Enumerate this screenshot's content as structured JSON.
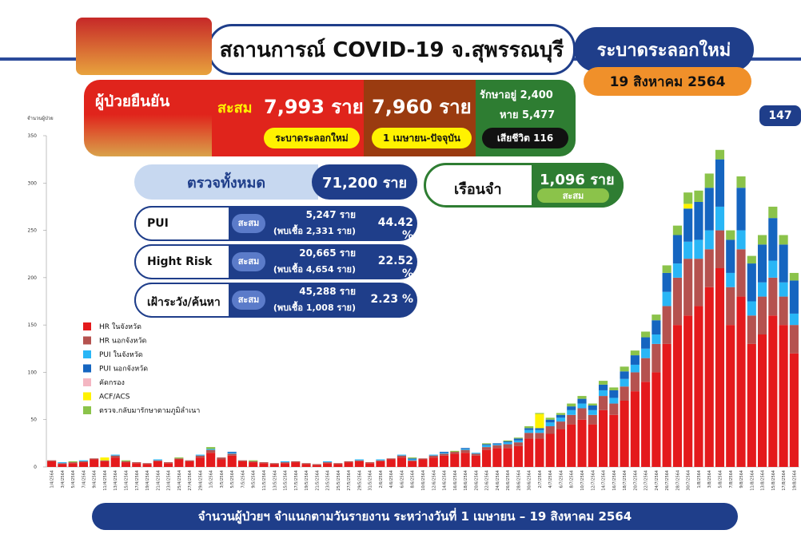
{
  "header": {
    "title": "สถานการณ์ COVID-19 จ.สุพรรณบุรี",
    "badge": "ระบาดระลอกใหม่",
    "date": "19 สิงหาคม 2564",
    "side_badge": "147"
  },
  "confirmed": {
    "title": "ผู้ป่วยยืนยัน",
    "cumulative_label": "สะสม",
    "total": "7,993 ราย",
    "total_note": "ระบาดระลอกใหม่",
    "since": "7,960 ราย",
    "since_note": "1 เมษายน-ปัจจุบัน",
    "treating": "รักษาอยู่ 2,400",
    "recovered": "หาย 5,477",
    "deaths": "เสียชีวิต 116"
  },
  "tests": {
    "title": "ตรวจทั้งหมด",
    "total": "71,200 ราย",
    "rows": [
      {
        "label": "PUI",
        "tag": "สะสม",
        "count": "5,247 ราย",
        "found": "(พบเชื้อ 2,331 ราย)",
        "pct": "44.42 %"
      },
      {
        "label": "Hight Risk",
        "tag": "สะสม",
        "count": "20,665 ราย",
        "found": "(พบเชื้อ 4,654 ราย)",
        "pct": "22.52 %"
      },
      {
        "label": "เฝ้าระวัง/ค้นหา",
        "tag": "สะสม",
        "count": "45,288 ราย",
        "found": "(พบเชื้อ 1,008 ราย)",
        "pct": "2.23 %"
      }
    ]
  },
  "prison": {
    "title": "เรือนจำ",
    "value": "1,096 ราย",
    "note": "สะสม"
  },
  "caption": "จำนวนผู้ป่วยฯ จำแนกตามวันรายงาน ระหว่างวันที่ 1 เมษายน – 19 สิงหาคม 2564",
  "chart_data": {
    "type": "bar",
    "stacked": true,
    "ylabel": "จำนวนผู้ป่วย",
    "ylim": [
      0,
      350
    ],
    "yticks": [
      0,
      50,
      100,
      150,
      200,
      250,
      300,
      350
    ],
    "grid": false,
    "categories": [
      "1/4/2564",
      "3/4/2564",
      "5/4/2564",
      "7/4/2564",
      "9/4/2564",
      "11/4/2564",
      "13/4/2564",
      "15/4/2564",
      "17/4/2564",
      "19/4/2564",
      "21/4/2564",
      "23/4/2564",
      "25/4/2564",
      "27/4/2564",
      "29/4/2564",
      "1/5/2564",
      "3/5/2564",
      "5/5/2564",
      "7/5/2564",
      "9/5/2564",
      "11/5/2564",
      "13/5/2564",
      "15/5/2564",
      "17/5/2564",
      "19/5/2564",
      "21/5/2564",
      "23/5/2564",
      "25/5/2564",
      "27/5/2564",
      "29/5/2564",
      "31/5/2564",
      "2/6/2564",
      "4/6/2564",
      "6/6/2564",
      "8/6/2564",
      "10/6/2564",
      "12/6/2564",
      "14/6/2564",
      "16/6/2564",
      "18/6/2564",
      "20/6/2564",
      "22/6/2564",
      "24/6/2564",
      "26/6/2564",
      "28/6/2564",
      "30/6/2564",
      "2/7/2564",
      "4/7/2564",
      "6/7/2564",
      "8/7/2564",
      "10/7/2564",
      "12/7/2564",
      "14/7/2564",
      "16/7/2564",
      "18/7/2564",
      "20/7/2564",
      "22/7/2564",
      "24/7/2564",
      "26/7/2564",
      "28/7/2564",
      "30/7/2564",
      "1/8/2564",
      "3/8/2564",
      "5/8/2564",
      "7/8/2564",
      "9/8/2564",
      "11/8/2564",
      "13/8/2564",
      "15/8/2564",
      "17/8/2564",
      "19/8/2564"
    ],
    "series": [
      {
        "name": "HR ในจังหวัด",
        "color": "#e41a1c",
        "values": [
          6,
          3,
          4,
          5,
          8,
          6,
          10,
          5,
          4,
          3,
          6,
          4,
          8,
          6,
          10,
          15,
          8,
          12,
          6,
          5,
          4,
          3,
          4,
          5,
          3,
          2,
          4,
          3,
          5,
          6,
          4,
          6,
          8,
          10,
          6,
          8,
          10,
          12,
          14,
          15,
          12,
          18,
          20,
          20,
          22,
          30,
          30,
          35,
          40,
          45,
          50,
          45,
          60,
          55,
          70,
          80,
          90,
          100,
          130,
          150,
          160,
          170,
          190,
          210,
          150,
          180,
          130,
          140,
          160,
          150,
          120
        ]
      },
      {
        "name": "HR นอกจังหวัด",
        "color": "#b5524f",
        "values": [
          1,
          1,
          1,
          1,
          1,
          1,
          2,
          1,
          1,
          1,
          1,
          1,
          1,
          1,
          2,
          3,
          2,
          2,
          1,
          1,
          1,
          1,
          1,
          1,
          1,
          1,
          1,
          1,
          1,
          1,
          1,
          1,
          1,
          2,
          1,
          1,
          2,
          2,
          2,
          3,
          2,
          3,
          3,
          4,
          4,
          6,
          6,
          8,
          8,
          10,
          12,
          10,
          15,
          12,
          15,
          20,
          25,
          30,
          40,
          50,
          60,
          50,
          40,
          40,
          40,
          50,
          30,
          40,
          40,
          30,
          30
        ]
      },
      {
        "name": "PUI ในจังหวัด",
        "color": "#29b6f6",
        "values": [
          0,
          1,
          0,
          1,
          0,
          0,
          1,
          0,
          0,
          0,
          1,
          0,
          0,
          0,
          1,
          1,
          0,
          1,
          0,
          0,
          0,
          0,
          1,
          0,
          0,
          0,
          1,
          0,
          0,
          1,
          0,
          1,
          0,
          1,
          1,
          0,
          1,
          1,
          0,
          1,
          1,
          2,
          1,
          2,
          2,
          3,
          3,
          4,
          4,
          5,
          5,
          5,
          6,
          6,
          8,
          8,
          10,
          10,
          15,
          15,
          18,
          20,
          20,
          25,
          15,
          20,
          15,
          15,
          18,
          15,
          12
        ]
      },
      {
        "name": "PUI นอกจังหวัด",
        "color": "#1565c0",
        "values": [
          0,
          0,
          0,
          0,
          0,
          0,
          0,
          0,
          0,
          0,
          0,
          0,
          0,
          0,
          0,
          0,
          0,
          1,
          0,
          0,
          0,
          0,
          0,
          0,
          0,
          0,
          0,
          0,
          0,
          0,
          0,
          0,
          0,
          0,
          1,
          0,
          0,
          1,
          0,
          1,
          0,
          1,
          1,
          1,
          2,
          2,
          2,
          3,
          3,
          4,
          5,
          5,
          6,
          8,
          8,
          10,
          12,
          15,
          20,
          30,
          35,
          40,
          45,
          50,
          35,
          45,
          40,
          40,
          45,
          40,
          35
        ]
      },
      {
        "name": "คัดกรอง",
        "color": "#f4b6c2",
        "values": [
          0,
          0,
          0,
          0,
          0,
          0,
          0,
          0,
          0,
          0,
          0,
          0,
          0,
          0,
          0,
          0,
          0,
          0,
          0,
          0,
          0,
          0,
          0,
          0,
          0,
          0,
          0,
          0,
          0,
          0,
          0,
          0,
          0,
          0,
          0,
          0,
          0,
          0,
          0,
          0,
          0,
          0,
          0,
          0,
          0,
          0,
          0,
          0,
          0,
          0,
          0,
          0,
          0,
          0,
          0,
          0,
          0,
          0,
          0,
          0,
          0,
          0,
          0,
          0,
          0,
          0,
          0,
          0,
          0,
          0,
          0
        ]
      },
      {
        "name": "ACF/ACS",
        "color": "#fff200",
        "values": [
          0,
          0,
          0,
          0,
          0,
          3,
          0,
          0,
          0,
          0,
          0,
          0,
          0,
          0,
          0,
          0,
          0,
          0,
          0,
          0,
          0,
          0,
          0,
          0,
          0,
          0,
          0,
          0,
          0,
          0,
          0,
          0,
          0,
          0,
          0,
          0,
          0,
          0,
          0,
          0,
          0,
          0,
          0,
          0,
          0,
          0,
          15,
          0,
          0,
          0,
          0,
          0,
          0,
          0,
          0,
          0,
          0,
          0,
          0,
          0,
          5,
          0,
          0,
          0,
          0,
          0,
          0,
          0,
          0,
          0,
          0
        ]
      },
      {
        "name": "ตรวจ.กลับมารักษาตามภูมิลำเนา",
        "color": "#8bc34a",
        "values": [
          0,
          0,
          1,
          0,
          0,
          0,
          0,
          1,
          0,
          0,
          0,
          0,
          1,
          0,
          0,
          2,
          0,
          0,
          0,
          1,
          0,
          0,
          0,
          0,
          0,
          0,
          0,
          0,
          0,
          0,
          0,
          0,
          0,
          0,
          1,
          0,
          0,
          0,
          1,
          0,
          0,
          1,
          0,
          1,
          1,
          2,
          1,
          2,
          2,
          3,
          3,
          2,
          4,
          3,
          5,
          5,
          6,
          6,
          8,
          10,
          12,
          12,
          15,
          10,
          10,
          12,
          8,
          10,
          12,
          10,
          8
        ]
      }
    ]
  }
}
